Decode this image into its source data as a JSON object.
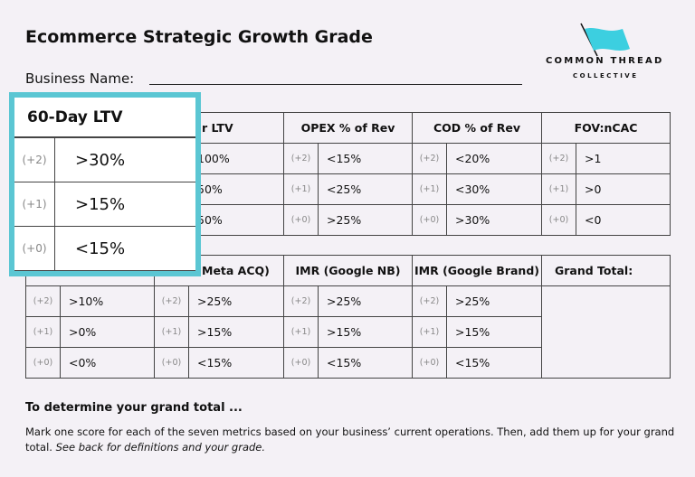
{
  "title": "Ecommerce Strategic Growth Grade",
  "business_label": "Business Name:",
  "logo": {
    "line1": "COMMON THREAD",
    "line2": "COLLECTIVE"
  },
  "table1": {
    "columns": [
      {},
      {
        "header": "r LTV",
        "values": [
          "100%",
          "50%",
          "50%"
        ]
      },
      {
        "header": "OPEX % of Rev",
        "scores": [
          "(+2)",
          "(+1)",
          "(+0)"
        ],
        "values": [
          "<15%",
          "<25%",
          ">25%"
        ]
      },
      {
        "header": "COD % of Rev",
        "scores": [
          "(+2)",
          "(+1)",
          "(+0)"
        ],
        "values": [
          "<20%",
          "<30%",
          ">30%"
        ]
      },
      {
        "header": "FOV:nCAC",
        "scores": [
          "(+2)",
          "(+1)",
          "(+0)"
        ],
        "values": [
          ">1",
          ">0",
          "<0"
        ]
      }
    ]
  },
  "table2": {
    "columns": [
      {
        "scores": [
          "(+2)",
          "(+1)",
          "(+0)"
        ],
        "values": [
          ">10%",
          ">0%",
          "<0%"
        ]
      },
      {
        "header": "Meta ACQ)",
        "scores": [
          "(+2)",
          "(+1)",
          "(+0)"
        ],
        "values": [
          ">25%",
          ">15%",
          "<15%"
        ]
      },
      {
        "header": "IMR (Google NB)",
        "scores": [
          "(+2)",
          "(+1)",
          "(+0)"
        ],
        "values": [
          ">25%",
          ">15%",
          "<15%"
        ]
      },
      {
        "header": "IMR (Google Brand)",
        "scores": [
          "(+2)",
          "(+1)",
          "(+0)"
        ],
        "values": [
          ">25%",
          ">15%",
          "<15%"
        ]
      },
      {
        "header": "Grand Total:"
      }
    ]
  },
  "overlay": {
    "header": "60-Day LTV",
    "scores": [
      "(+2)",
      "(+1)",
      "(+0)"
    ],
    "values": [
      ">30%",
      ">15%",
      "<15%"
    ]
  },
  "footer": {
    "heading": "To determine your grand total ...",
    "body": "Mark one score for each of the seven metrics based on your business’ current operations. Then, add them up for your grand total.",
    "note": "See back for definitions and your grade."
  }
}
